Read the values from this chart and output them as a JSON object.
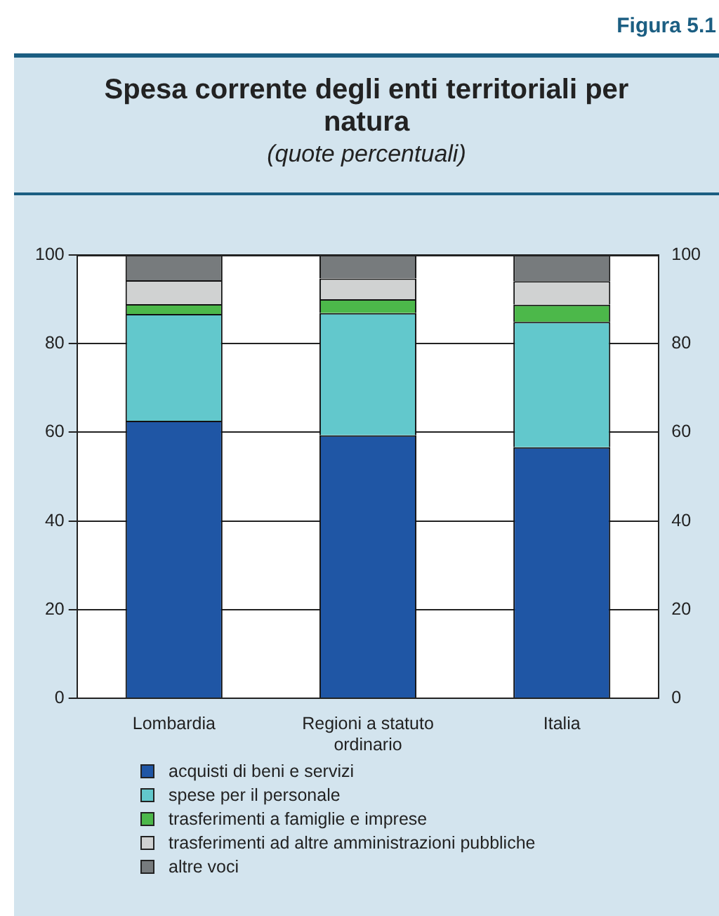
{
  "chart_data": {
    "type": "bar",
    "title": "Spesa corrente degli enti territoriali per natura",
    "subtitle": "(quote percentuali)",
    "annotations": [
      "Figura 5.1"
    ],
    "categories": [
      "Lombardia",
      "Regioni a statuto ordinario",
      "Italia"
    ],
    "stacked": true,
    "series": [
      {
        "name": "acquisti di beni e servizi",
        "color": "#1f56a5",
        "values": [
          62.6,
          59.3,
          56.6
        ]
      },
      {
        "name": "spese per il personale",
        "color": "#62c8cc",
        "values": [
          24.1,
          27.6,
          28.3
        ]
      },
      {
        "name": "trasferimenti a famiglie e imprese",
        "color": "#4cb84a",
        "values": [
          2.2,
          3.1,
          3.9
        ]
      },
      {
        "name": "trasferimenti ad altre amministrazioni pubbliche",
        "color": "#d0d2d2",
        "values": [
          5.4,
          4.7,
          5.3
        ]
      },
      {
        "name": "altre voci",
        "color": "#777b7d",
        "values": [
          5.7,
          5.3,
          5.9
        ]
      }
    ],
    "ylim": [
      0,
      100
    ],
    "yticks": [
      0,
      20,
      40,
      60,
      80,
      100
    ],
    "y2lim": [
      0,
      100
    ],
    "y2ticks": [
      0,
      20,
      40,
      60,
      80,
      100
    ],
    "grid": "y",
    "legend": "bottom"
  }
}
